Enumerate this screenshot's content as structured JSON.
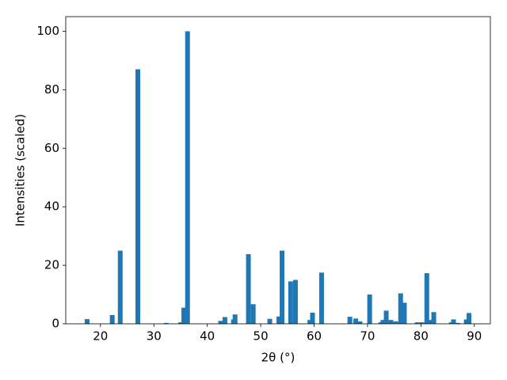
{
  "chart_data": {
    "type": "bar",
    "xlabel": "2θ (°)",
    "ylabel": "Intensities (scaled)",
    "x": [
      17.5,
      22.2,
      23.7,
      27.0,
      32.3,
      35.0,
      35.6,
      36.3,
      42.5,
      43.3,
      44.9,
      45.2,
      47.7,
      48.6,
      51.7,
      53.4,
      54.0,
      55.6,
      56.5,
      59.2,
      59.7,
      61.4,
      66.7,
      67.8,
      68.6,
      70.4,
      72.5,
      72.9,
      73.5,
      74.4,
      75.3,
      76.2,
      76.9,
      79.3,
      80.2,
      81.1,
      81.8,
      82.4,
      85.7,
      86.1,
      86.9,
      88.5,
      89.0
    ],
    "values": [
      1.6,
      3,
      25,
      87,
      0.3,
      0.5,
      5.5,
      100,
      1,
      2.3,
      1.5,
      3.2,
      23.8,
      6.7,
      1.7,
      2.5,
      25,
      14.5,
      15,
      1.3,
      3.8,
      17.5,
      2.4,
      1.8,
      0.8,
      10,
      0.5,
      1.3,
      4.5,
      1.3,
      0.8,
      10.4,
      7.2,
      0.5,
      0.5,
      17.3,
      1.3,
      4,
      0.5,
      1.5,
      0.3,
      1.5,
      3.7
    ],
    "color": "#1f77b4",
    "xlim": [
      13.5,
      93.0
    ],
    "xticks": [
      20,
      30,
      40,
      50,
      60,
      70,
      80,
      90
    ],
    "ylim": [
      0,
      105
    ],
    "yticks": [
      0,
      20,
      40,
      60,
      80,
      100
    ]
  }
}
